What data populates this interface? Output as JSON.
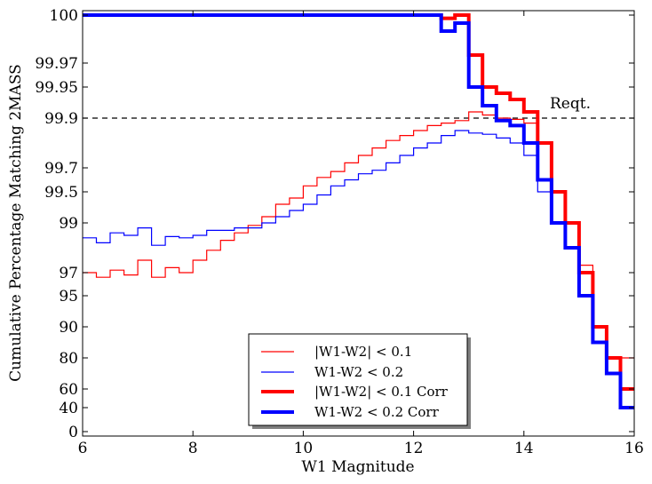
{
  "chart_data": {
    "type": "line",
    "step": true,
    "xlabel": "W1 Magnitude",
    "ylabel": "Cumulative Percentage Matching 2MASS",
    "xlim": [
      6,
      16
    ],
    "x_ticks": [
      6,
      8,
      10,
      12,
      14,
      16
    ],
    "y_scale": "nonlinear (compressed near 100%)",
    "y_ticks": [
      "100",
      "99.97",
      "99.95",
      "99.9",
      "99.7",
      "99.5",
      "99",
      "97",
      "95",
      "90",
      "80",
      "60",
      "40",
      "0"
    ],
    "y_tick_values": [
      100,
      99.97,
      99.95,
      99.9,
      99.7,
      99.5,
      99,
      97,
      95,
      90,
      80,
      60,
      40,
      0
    ],
    "reference_line": {
      "y": 99.9,
      "label": "Reqt.",
      "style": "dashed"
    },
    "legend_position": "lower-center",
    "grid": false,
    "bin_edges": [
      6.0,
      6.25,
      6.5,
      6.75,
      7.0,
      7.25,
      7.5,
      7.75,
      8.0,
      8.25,
      8.5,
      8.75,
      9.0,
      9.25,
      9.5,
      9.75,
      10.0,
      10.25,
      10.5,
      10.75,
      11.0,
      11.25,
      11.5,
      11.75,
      12.0,
      12.25,
      12.5,
      12.75,
      13.0,
      13.25,
      13.5,
      13.75,
      14.0,
      14.25,
      14.5,
      14.75,
      15.0,
      15.25,
      15.5,
      15.75,
      16.0
    ],
    "series": [
      {
        "name": "|W1-W2| < 0.1",
        "color": "#ff0000",
        "width": "thin",
        "values": [
          97.0,
          96.6,
          97.1,
          96.8,
          97.5,
          96.6,
          97.2,
          97.0,
          97.5,
          97.9,
          98.3,
          98.6,
          98.9,
          99.1,
          99.3,
          99.4,
          99.55,
          99.62,
          99.67,
          99.72,
          99.75,
          99.78,
          99.81,
          99.83,
          99.85,
          99.87,
          99.88,
          99.89,
          99.91,
          99.905,
          99.9,
          99.895,
          99.88,
          99.8,
          99.5,
          99.0,
          97.3,
          90.0,
          80.0,
          80.0
        ]
      },
      {
        "name": "W1-W2  < 0.2",
        "color": "#0000ff",
        "width": "thin",
        "values": [
          98.4,
          98.2,
          98.6,
          98.5,
          98.8,
          98.1,
          98.45,
          98.4,
          98.5,
          98.7,
          98.7,
          98.8,
          98.8,
          99.0,
          99.1,
          99.2,
          99.3,
          99.45,
          99.55,
          99.6,
          99.65,
          99.68,
          99.72,
          99.75,
          99.78,
          99.8,
          99.83,
          99.85,
          99.84,
          99.835,
          99.82,
          99.8,
          99.75,
          99.5,
          99.5,
          99.0,
          97.0,
          90.0,
          80.0,
          60.0
        ]
      },
      {
        "name": "|W1-W2| < 0.1 Corr",
        "color": "#ff0000",
        "width": "thick",
        "values": [
          100,
          100,
          100,
          100,
          100,
          100,
          100,
          100,
          100,
          100,
          100,
          100,
          100,
          100,
          100,
          100,
          100,
          100,
          100,
          100,
          100,
          100,
          100,
          100,
          100,
          100,
          99.998,
          100,
          99.975,
          99.95,
          99.94,
          99.93,
          99.91,
          99.8,
          99.5,
          99.0,
          97.0,
          90.0,
          80.0,
          60.0
        ]
      },
      {
        "name": "W1-W2  < 0.2 Corr",
        "color": "#0000ff",
        "width": "thick",
        "values": [
          100,
          100,
          100,
          100,
          100,
          100,
          100,
          100,
          100,
          100,
          100,
          100,
          100,
          100,
          100,
          100,
          100,
          100,
          100,
          100,
          100,
          100,
          100,
          100,
          100,
          100,
          99.99,
          99.995,
          99.95,
          99.92,
          99.89,
          99.87,
          99.8,
          99.6,
          99.0,
          98.0,
          95.0,
          85.0,
          70.0,
          40.0
        ]
      }
    ]
  }
}
